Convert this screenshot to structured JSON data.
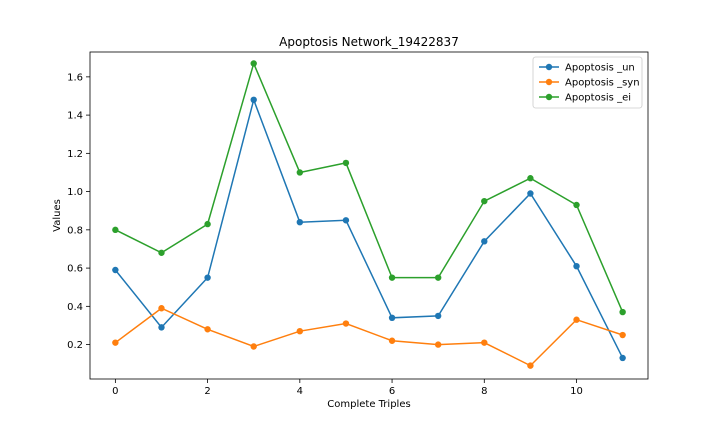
{
  "chart_data": {
    "type": "line",
    "title": "Apoptosis Network_19422837",
    "xlabel": "Complete Triples",
    "ylabel": "Values",
    "x": [
      0,
      1,
      2,
      3,
      4,
      5,
      6,
      7,
      8,
      9,
      10,
      11
    ],
    "xlim": [
      -0.55,
      11.55
    ],
    "ylim": [
      0.02,
      1.73
    ],
    "xticks": [
      0,
      2,
      4,
      6,
      8,
      10
    ],
    "yticks": [
      0.2,
      0.4,
      0.6,
      0.8,
      1.0,
      1.2,
      1.4,
      1.6
    ],
    "ytick_labels": [
      "0.2",
      "0.4",
      "0.6",
      "0.8",
      "1.0",
      "1.2",
      "1.4",
      "1.6"
    ],
    "grid": false,
    "legend_position": "top-right",
    "series": [
      {
        "name": "Apoptosis _un",
        "color": "#1f77b4",
        "values": [
          0.59,
          0.29,
          0.55,
          1.48,
          0.84,
          0.85,
          0.34,
          0.35,
          0.74,
          0.99,
          0.61,
          0.13
        ]
      },
      {
        "name": "Apoptosis _syn",
        "color": "#ff7f0e",
        "values": [
          0.21,
          0.39,
          0.28,
          0.19,
          0.27,
          0.31,
          0.22,
          0.2,
          0.21,
          0.09,
          0.33,
          0.25
        ]
      },
      {
        "name": "Apoptosis _ei",
        "color": "#2ca02c",
        "values": [
          0.8,
          0.68,
          0.83,
          1.67,
          1.1,
          1.15,
          0.55,
          0.55,
          0.95,
          1.07,
          0.93,
          0.37
        ]
      }
    ]
  }
}
